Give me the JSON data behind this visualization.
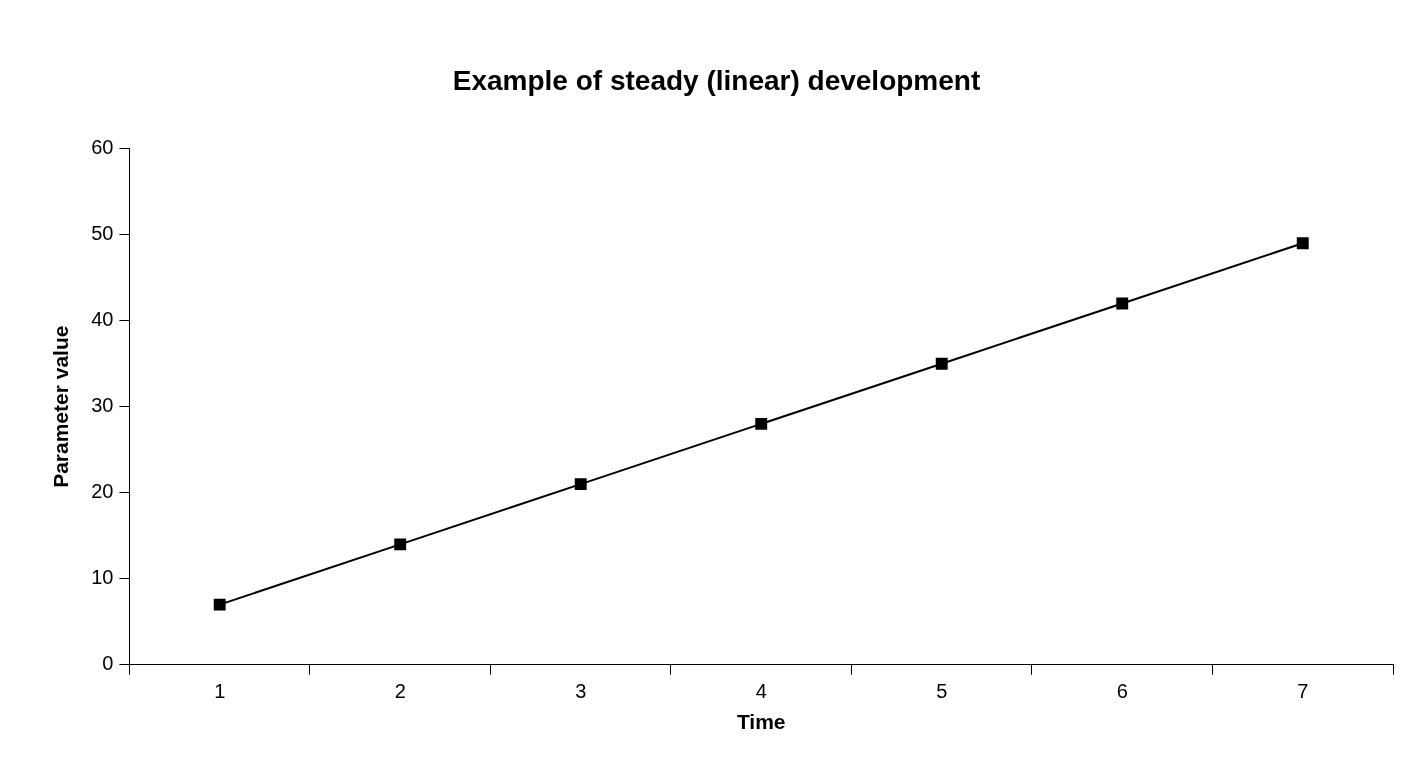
{
  "chart_data": {
    "type": "line",
    "title": "Example of steady (linear) development",
    "xlabel": "Time",
    "ylabel": "Parameter value",
    "categories": [
      "1",
      "2",
      "3",
      "4",
      "5",
      "6",
      "7"
    ],
    "series": [
      {
        "color": "#000000",
        "values": [
          7,
          14,
          21,
          28,
          35,
          42,
          49
        ]
      }
    ],
    "ylim": [
      0,
      60
    ],
    "yticks": [
      0,
      10,
      20,
      30,
      40,
      50,
      60
    ],
    "grid": false,
    "legend": false,
    "marker": "square",
    "line_style": "solid"
  }
}
